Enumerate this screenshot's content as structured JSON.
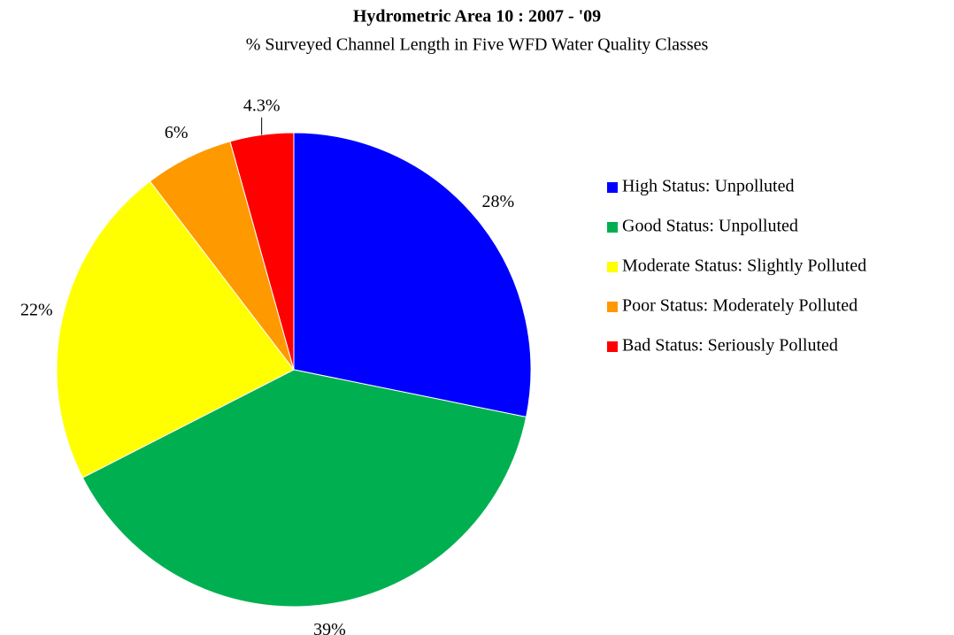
{
  "chart_data": {
    "type": "pie",
    "title": "Hydrometric Area 10 : 2007 - '09",
    "subtitle": "% Surveyed Channel Length in Five WFD Water Quality Classes",
    "categories": [
      "High Status: Unpolluted",
      "Good Status: Unpolluted",
      "Moderate Status: Slightly Polluted",
      "Poor Status: Moderately Polluted",
      "Bad Status: Seriously Polluted"
    ],
    "values": [
      28,
      39,
      22,
      6,
      4.3
    ],
    "value_labels": [
      "28%",
      "39%",
      "22%",
      "6%",
      "4.3%"
    ],
    "colors": [
      "#0000ff",
      "#00b050",
      "#ffff00",
      "#ff9900",
      "#ff0000"
    ],
    "legend": "right"
  }
}
